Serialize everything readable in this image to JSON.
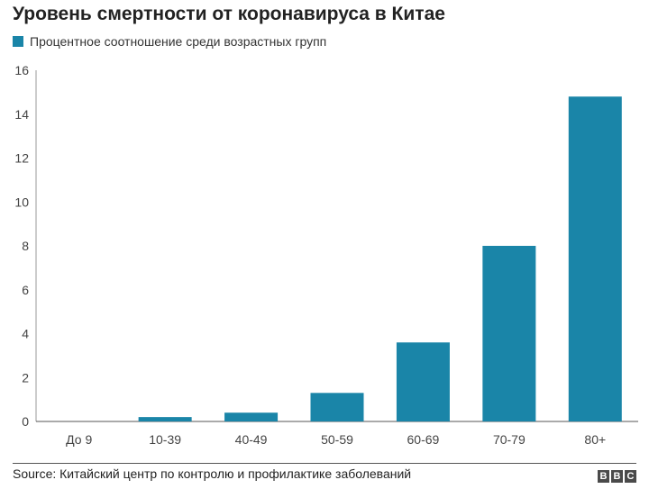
{
  "chart_data": {
    "type": "bar",
    "title": "Уровень смертности от коронавируса в Китае",
    "series": [
      {
        "name": "Процентное соотношение среди возрастных групп",
        "values": [
          0,
          0.2,
          0.4,
          1.3,
          3.6,
          8.0,
          14.8
        ]
      }
    ],
    "categories": [
      "До 9",
      "10-39",
      "40-49",
      "50-59",
      "60-69",
      "70-79",
      "80+"
    ],
    "ylim": [
      0,
      16
    ],
    "yticks": [
      "0",
      "2",
      "4",
      "6",
      "8",
      "10",
      "12",
      "14",
      "16"
    ],
    "grid": false,
    "legend": "top-left",
    "bar_color": "#1a85a8"
  },
  "footer": {
    "source": "Source: Китайский центр по контролю и профилактике заболеваний",
    "logo_letters": [
      "B",
      "B",
      "C"
    ]
  }
}
